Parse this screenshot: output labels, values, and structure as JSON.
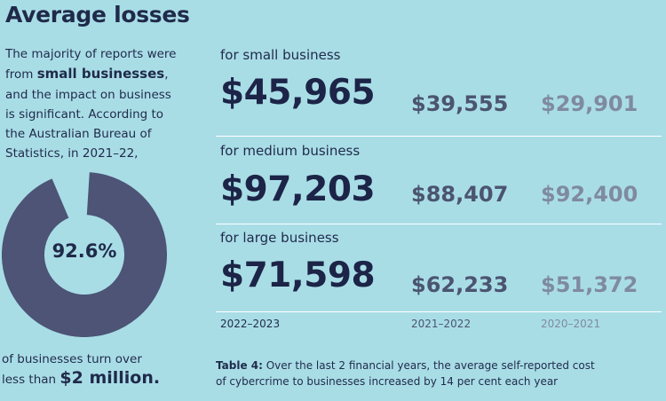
{
  "title": "Average losses",
  "intro": {
    "line1": "The majority of reports were",
    "line2_pre": "from ",
    "line2_bold": "small businesses",
    "line2_post": ",",
    "line3": "and the impact on business",
    "line4": "is significant. According to",
    "line5": "the Australian Bureau of",
    "line6": "Statistics, in 2021–22,"
  },
  "donut": {
    "label": "92.6%",
    "percent": 92.6,
    "fill_color": "#4d5476"
  },
  "footnote": {
    "line1": "of businesses turn over",
    "line2_pre": "less than ",
    "line2_bold": "$2 million."
  },
  "sections": [
    {
      "label": "for small business",
      "current": "$45,965",
      "prev": "$39,555",
      "older": "$29,901"
    },
    {
      "label": "for medium business",
      "current": "$97,203",
      "prev": "$88,407",
      "older": "$92,400"
    },
    {
      "label": "for large business",
      "current": "$71,598",
      "prev": "$62,233",
      "older": "$51,372"
    }
  ],
  "years": [
    "2022–2023",
    "2021–2022",
    "2020–2021"
  ],
  "caption": {
    "bold": "Table 4:",
    "line1_rest": " Over the last 2 financial years, the average self-reported cost",
    "line2": "of cybercrime to businesses increased by 14 per cent each year"
  },
  "colors": {
    "background": "#a9dde6",
    "text_dark": "#1c2447",
    "text_mid": "#4b5470",
    "text_light": "#7f8aa0",
    "rule": "#ffffff"
  }
}
